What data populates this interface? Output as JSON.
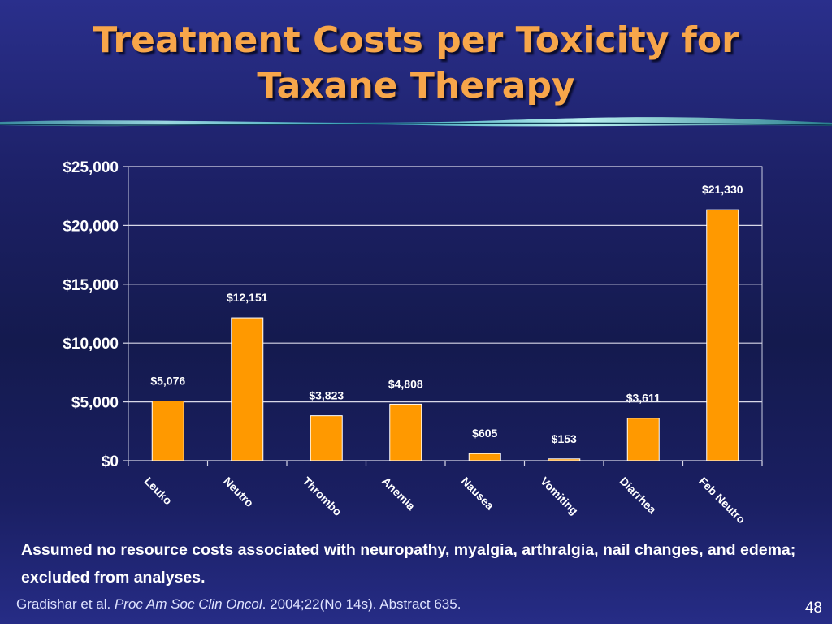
{
  "slide": {
    "title_line1": "Treatment Costs per Toxicity for",
    "title_line2": "Taxane Therapy",
    "note_text": "Assumed no resource costs associated with neuropathy, myalgia, arthralgia, nail changes, and edema; excluded from analyses.",
    "citation_authors": "Gradishar et al. ",
    "citation_journal": "Proc Am Soc Clin Oncol",
    "citation_details": ". 2004;22(No 14s). Abstract 635.",
    "page_number": "48"
  },
  "colors": {
    "bar": "#ff9900",
    "text": "#ffffff",
    "title": "#f7a64a",
    "grid": "#d8d8e8"
  },
  "chart_data": {
    "type": "bar",
    "categories": [
      "Leuko",
      "Neutro",
      "Thrombo",
      "Anemia",
      "Nausea",
      "Vomiting",
      "Diarrhea",
      "Feb Neutro"
    ],
    "values": [
      5076,
      12151,
      3823,
      4808,
      605,
      153,
      3611,
      21330
    ],
    "data_labels": [
      "$5,076",
      "$12,151",
      "$3,823",
      "$4,808",
      "$605",
      "$153",
      "$3,611",
      "$21,330"
    ],
    "y_ticks": [
      0,
      5000,
      10000,
      15000,
      20000,
      25000
    ],
    "y_tick_labels": [
      "$0",
      "$5,000",
      "$10,000",
      "$15,000",
      "$20,000",
      "$25,000"
    ],
    "ylim": [
      0,
      25000
    ],
    "grid": true,
    "legend": "none"
  }
}
